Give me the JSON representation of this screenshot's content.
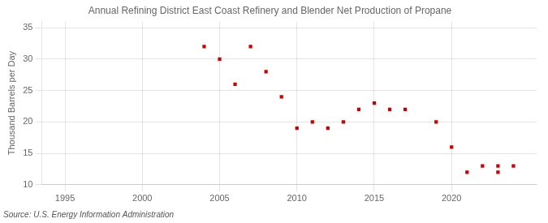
{
  "chart_data": {
    "type": "scatter",
    "title": "Annual Refining District East Coast Refinery and Blender Net Production of Propane",
    "ylabel": "Thousand Barrels per Day",
    "annotation": "Source: U.S. Energy Information Administration",
    "x": [
      2004,
      2005,
      2006,
      2007,
      2008,
      2009,
      2010,
      2011,
      2012,
      2013,
      2014,
      2015,
      2016,
      2017,
      2019,
      2020,
      2021,
      2022,
      2023,
      2023,
      2024
    ],
    "values": [
      32,
      30,
      26,
      32,
      28,
      24,
      19,
      20,
      19,
      20,
      22,
      23,
      22,
      22,
      20,
      16,
      12,
      13,
      13,
      12,
      13
    ],
    "color": "#cc0000",
    "marker": "square",
    "xlim": [
      1993.5,
      2025.5
    ],
    "ylim": [
      10,
      36
    ],
    "xticks": [
      1995,
      2000,
      2005,
      2010,
      2015,
      2020
    ],
    "yticks": [
      10,
      15,
      20,
      25,
      30,
      35
    ],
    "grid": true
  }
}
